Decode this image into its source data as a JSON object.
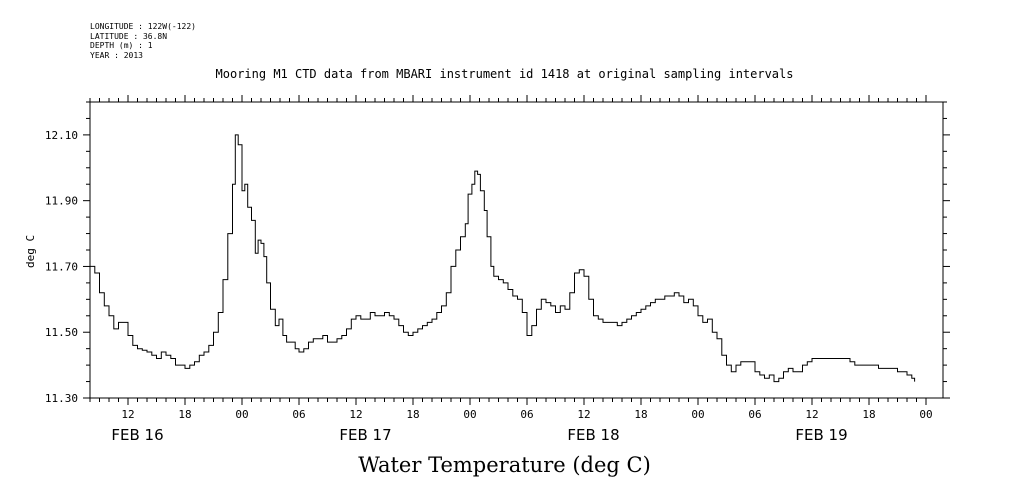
{
  "header": {
    "longitude": "LONGITUDE : 122W(-122)",
    "latitude": "LATITUDE : 36.8N",
    "depth": "DEPTH (m) : 1",
    "year": "YEAR : 2013"
  },
  "chart_data": {
    "type": "line",
    "title": "Mooring M1 CTD data from MBARI instrument id 1418 at original sampling intervals",
    "xlabel": "Water Temperature (deg C)",
    "ylabel": "deg C",
    "ylim": [
      11.3,
      12.2
    ],
    "y_ticks": [
      "11.30",
      "11.50",
      "11.70",
      "11.90",
      "12.10"
    ],
    "x_hour_range": [
      8,
      96
    ],
    "x_tick_labels": [
      {
        "hour": 12,
        "label": "12"
      },
      {
        "hour": 18,
        "label": "18"
      },
      {
        "hour": 24,
        "label": "00"
      },
      {
        "hour": 30,
        "label": "06"
      },
      {
        "hour": 36,
        "label": "12"
      },
      {
        "hour": 42,
        "label": "18"
      },
      {
        "hour": 48,
        "label": "00"
      },
      {
        "hour": 54,
        "label": "06"
      },
      {
        "hour": 60,
        "label": "12"
      },
      {
        "hour": 66,
        "label": "18"
      },
      {
        "hour": 72,
        "label": "00"
      },
      {
        "hour": 78,
        "label": "06"
      },
      {
        "hour": 84,
        "label": "12"
      },
      {
        "hour": 90,
        "label": "18"
      },
      {
        "hour": 96,
        "label": "00"
      }
    ],
    "day_labels": [
      {
        "hour": 13,
        "label": "FEB 16"
      },
      {
        "hour": 37,
        "label": "FEB 17"
      },
      {
        "hour": 61,
        "label": "FEB 18"
      },
      {
        "hour": 85,
        "label": "FEB 19"
      }
    ],
    "grid": false,
    "series": [
      {
        "points": [
          [
            8.0,
            11.7
          ],
          [
            8.5,
            11.68
          ],
          [
            9.0,
            11.62
          ],
          [
            9.5,
            11.58
          ],
          [
            10.0,
            11.55
          ],
          [
            10.5,
            11.51
          ],
          [
            11.0,
            11.53
          ],
          [
            11.5,
            11.53
          ],
          [
            12.0,
            11.49
          ],
          [
            12.5,
            11.46
          ],
          [
            13.0,
            11.45
          ],
          [
            13.5,
            11.445
          ],
          [
            14.0,
            11.44
          ],
          [
            14.5,
            11.43
          ],
          [
            15.0,
            11.42
          ],
          [
            15.5,
            11.44
          ],
          [
            16.0,
            11.43
          ],
          [
            16.5,
            11.42
          ],
          [
            17.0,
            11.4
          ],
          [
            17.5,
            11.4
          ],
          [
            18.0,
            11.39
          ],
          [
            18.5,
            11.4
          ],
          [
            19.0,
            11.41
          ],
          [
            19.5,
            11.43
          ],
          [
            20.0,
            11.44
          ],
          [
            20.5,
            11.46
          ],
          [
            21.0,
            11.5
          ],
          [
            21.5,
            11.56
          ],
          [
            22.0,
            11.66
          ],
          [
            22.5,
            11.8
          ],
          [
            23.0,
            11.95
          ],
          [
            23.3,
            12.1
          ],
          [
            23.6,
            12.07
          ],
          [
            24.0,
            11.93
          ],
          [
            24.3,
            11.95
          ],
          [
            24.6,
            11.88
          ],
          [
            25.0,
            11.84
          ],
          [
            25.4,
            11.74
          ],
          [
            25.7,
            11.78
          ],
          [
            26.0,
            11.77
          ],
          [
            26.3,
            11.73
          ],
          [
            26.6,
            11.65
          ],
          [
            27.0,
            11.57
          ],
          [
            27.5,
            11.52
          ],
          [
            27.9,
            11.54
          ],
          [
            28.3,
            11.49
          ],
          [
            28.7,
            11.47
          ],
          [
            29.2,
            11.47
          ],
          [
            29.6,
            11.45
          ],
          [
            30.0,
            11.44
          ],
          [
            30.5,
            11.45
          ],
          [
            31.0,
            11.47
          ],
          [
            31.5,
            11.48
          ],
          [
            32.0,
            11.48
          ],
          [
            32.5,
            11.49
          ],
          [
            33.0,
            11.47
          ],
          [
            33.5,
            11.47
          ],
          [
            34.0,
            11.48
          ],
          [
            34.5,
            11.49
          ],
          [
            35.0,
            11.51
          ],
          [
            35.5,
            11.54
          ],
          [
            36.0,
            11.55
          ],
          [
            36.5,
            11.54
          ],
          [
            37.0,
            11.54
          ],
          [
            37.5,
            11.56
          ],
          [
            38.0,
            11.55
          ],
          [
            38.5,
            11.55
          ],
          [
            39.0,
            11.56
          ],
          [
            39.5,
            11.55
          ],
          [
            40.0,
            11.54
          ],
          [
            40.5,
            11.52
          ],
          [
            41.0,
            11.5
          ],
          [
            41.5,
            11.49
          ],
          [
            42.0,
            11.5
          ],
          [
            42.5,
            11.51
          ],
          [
            43.0,
            11.52
          ],
          [
            43.5,
            11.53
          ],
          [
            44.0,
            11.54
          ],
          [
            44.5,
            11.56
          ],
          [
            45.0,
            11.58
          ],
          [
            45.5,
            11.62
          ],
          [
            46.0,
            11.7
          ],
          [
            46.5,
            11.75
          ],
          [
            47.0,
            11.79
          ],
          [
            47.5,
            11.83
          ],
          [
            47.8,
            11.92
          ],
          [
            48.2,
            11.95
          ],
          [
            48.5,
            11.99
          ],
          [
            48.8,
            11.98
          ],
          [
            49.1,
            11.93
          ],
          [
            49.5,
            11.87
          ],
          [
            49.8,
            11.79
          ],
          [
            50.2,
            11.7
          ],
          [
            50.5,
            11.67
          ],
          [
            51.0,
            11.66
          ],
          [
            51.5,
            11.65
          ],
          [
            52.0,
            11.63
          ],
          [
            52.5,
            11.61
          ],
          [
            53.0,
            11.6
          ],
          [
            53.5,
            11.56
          ],
          [
            54.0,
            11.49
          ],
          [
            54.5,
            11.52
          ],
          [
            55.0,
            11.57
          ],
          [
            55.5,
            11.6
          ],
          [
            56.0,
            11.59
          ],
          [
            56.5,
            11.58
          ],
          [
            57.0,
            11.56
          ],
          [
            57.5,
            11.58
          ],
          [
            58.0,
            11.57
          ],
          [
            58.5,
            11.62
          ],
          [
            59.0,
            11.68
          ],
          [
            59.5,
            11.69
          ],
          [
            60.0,
            11.67
          ],
          [
            60.5,
            11.6
          ],
          [
            61.0,
            11.55
          ],
          [
            61.5,
            11.54
          ],
          [
            62.0,
            11.53
          ],
          [
            62.5,
            11.53
          ],
          [
            63.0,
            11.53
          ],
          [
            63.5,
            11.52
          ],
          [
            64.0,
            11.53
          ],
          [
            64.5,
            11.54
          ],
          [
            65.0,
            11.55
          ],
          [
            65.5,
            11.56
          ],
          [
            66.0,
            11.57
          ],
          [
            66.5,
            11.58
          ],
          [
            67.0,
            11.59
          ],
          [
            67.5,
            11.6
          ],
          [
            68.0,
            11.6
          ],
          [
            68.5,
            11.61
          ],
          [
            69.0,
            11.61
          ],
          [
            69.5,
            11.62
          ],
          [
            70.0,
            11.61
          ],
          [
            70.5,
            11.59
          ],
          [
            71.0,
            11.6
          ],
          [
            71.5,
            11.58
          ],
          [
            72.0,
            11.55
          ],
          [
            72.5,
            11.53
          ],
          [
            73.0,
            11.54
          ],
          [
            73.5,
            11.5
          ],
          [
            74.0,
            11.48
          ],
          [
            74.5,
            11.43
          ],
          [
            75.0,
            11.4
          ],
          [
            75.5,
            11.38
          ],
          [
            76.0,
            11.4
          ],
          [
            76.5,
            11.41
          ],
          [
            77.0,
            11.41
          ],
          [
            77.5,
            11.41
          ],
          [
            78.0,
            11.38
          ],
          [
            78.5,
            11.37
          ],
          [
            79.0,
            11.36
          ],
          [
            79.5,
            11.37
          ],
          [
            80.0,
            11.35
          ],
          [
            80.5,
            11.36
          ],
          [
            81.0,
            11.38
          ],
          [
            81.5,
            11.39
          ],
          [
            82.0,
            11.38
          ],
          [
            82.5,
            11.38
          ],
          [
            83.0,
            11.4
          ],
          [
            83.5,
            11.41
          ],
          [
            84.0,
            11.42
          ],
          [
            84.5,
            11.42
          ],
          [
            85.0,
            11.42
          ],
          [
            85.5,
            11.42
          ],
          [
            86.0,
            11.42
          ],
          [
            86.5,
            11.42
          ],
          [
            87.0,
            11.42
          ],
          [
            87.5,
            11.42
          ],
          [
            88.0,
            11.41
          ],
          [
            88.5,
            11.4
          ],
          [
            89.0,
            11.4
          ],
          [
            89.5,
            11.4
          ],
          [
            90.0,
            11.4
          ],
          [
            90.5,
            11.4
          ],
          [
            91.0,
            11.39
          ],
          [
            91.5,
            11.39
          ],
          [
            92.0,
            11.39
          ],
          [
            92.5,
            11.39
          ],
          [
            93.0,
            11.38
          ],
          [
            93.5,
            11.38
          ],
          [
            94.0,
            11.37
          ],
          [
            94.5,
            11.36
          ],
          [
            94.8,
            11.35
          ]
        ]
      }
    ]
  }
}
